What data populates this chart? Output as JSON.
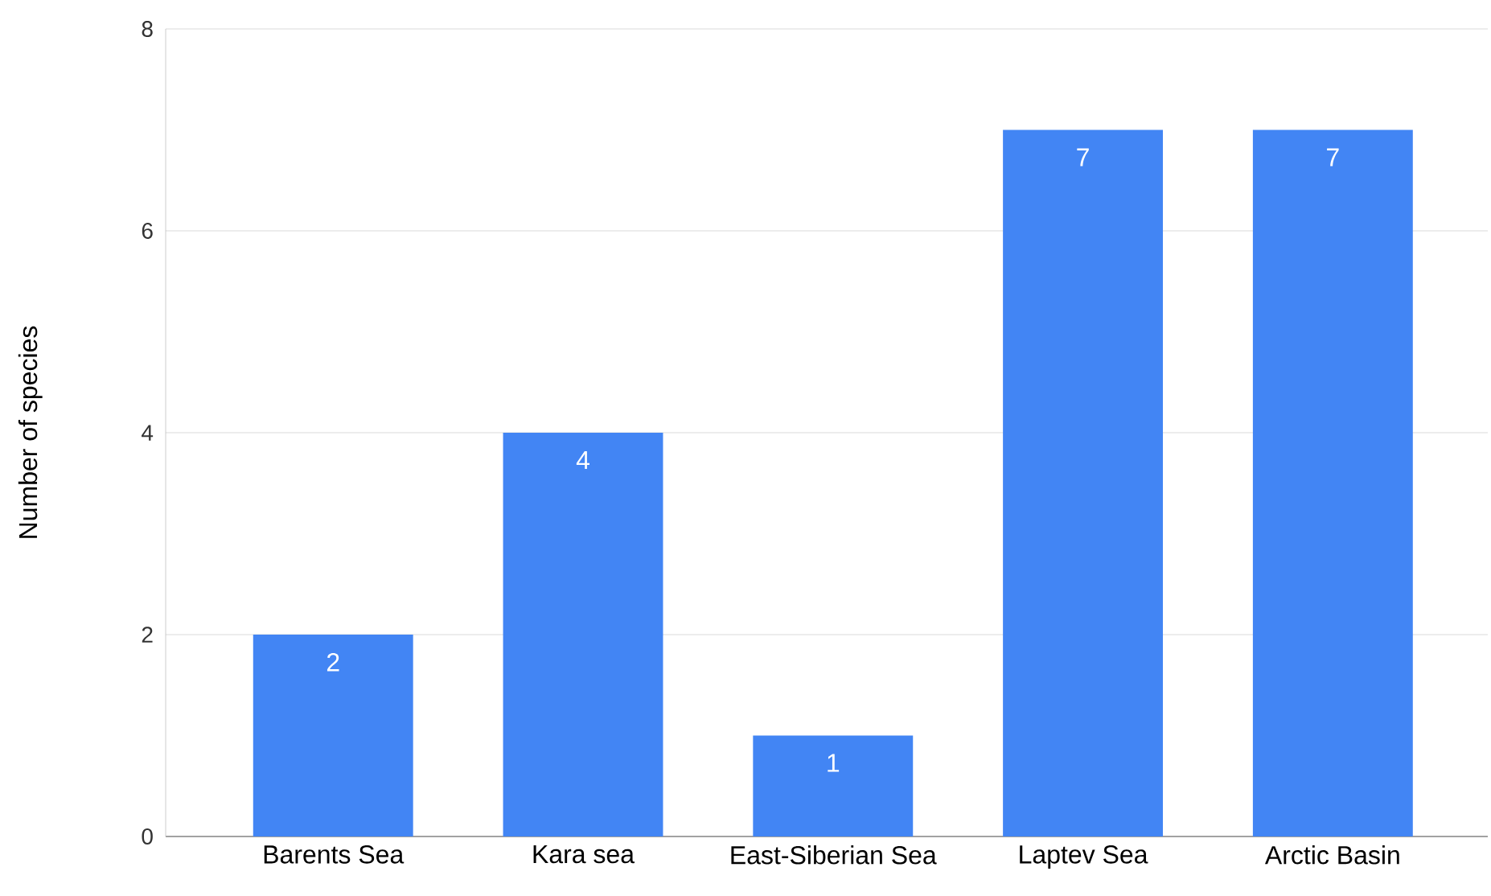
{
  "chart_data": {
    "type": "bar",
    "ylabel": "Number of species",
    "categories": [
      "Barents Sea",
      "Kara sea",
      "East-Siberian Sea",
      "Laptev Sea",
      "Arctic Basin"
    ],
    "values": [
      2,
      4,
      1,
      7,
      7
    ],
    "color": "#4285f4",
    "ylim": [
      0,
      8
    ],
    "yticks": [
      0,
      2,
      4,
      6,
      8
    ],
    "grid": "y",
    "data_labels": true
  }
}
